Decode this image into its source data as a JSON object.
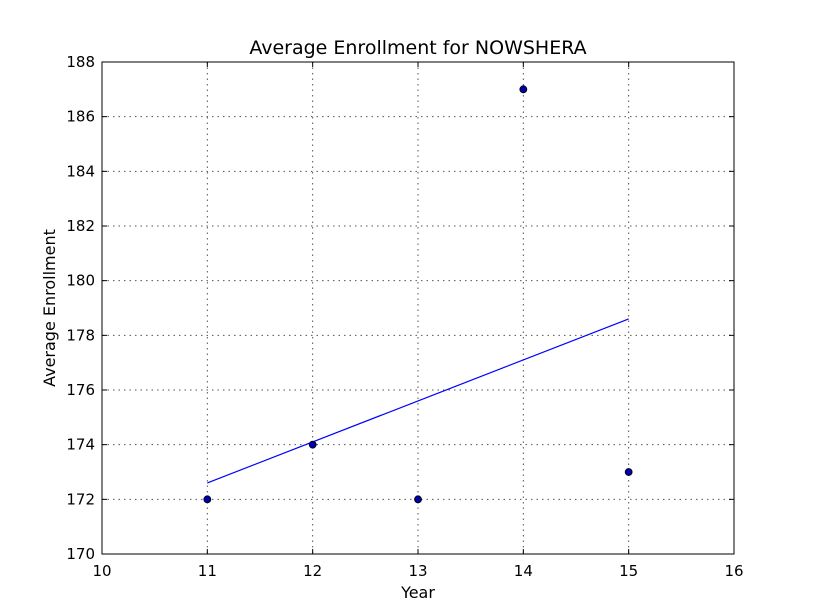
{
  "chart_data": {
    "type": "scatter",
    "title": "Average Enrollment for NOWSHERA",
    "xlabel": "Year",
    "ylabel": "Average Enrollment",
    "xlim": [
      10,
      16
    ],
    "ylim": [
      170,
      188
    ],
    "xticks": [
      10,
      11,
      12,
      13,
      14,
      15,
      16
    ],
    "yticks": [
      170,
      172,
      174,
      176,
      178,
      180,
      182,
      184,
      186,
      188
    ],
    "grid": true,
    "points": [
      {
        "x": 11,
        "y": 172
      },
      {
        "x": 12,
        "y": 174
      },
      {
        "x": 13,
        "y": 172
      },
      {
        "x": 14,
        "y": 187
      },
      {
        "x": 15,
        "y": 173
      }
    ],
    "trendline": [
      {
        "x": 11,
        "y": 172.6
      },
      {
        "x": 15,
        "y": 178.6
      }
    ],
    "colors": {
      "points": "#0000aa",
      "trendline": "#0000ff",
      "grid": "#555555"
    }
  }
}
